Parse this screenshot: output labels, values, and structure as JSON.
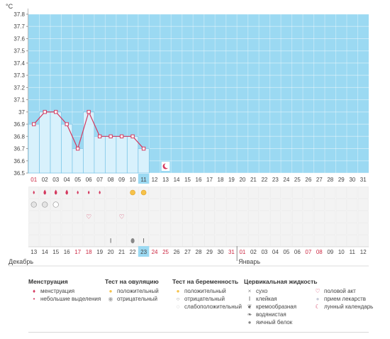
{
  "chart_data": {
    "type": "line",
    "ylabel": "°C",
    "ylim": [
      36.5,
      37.8
    ],
    "y_ticks": [
      36.5,
      36.6,
      36.7,
      36.8,
      36.9,
      37,
      37.1,
      37.2,
      37.3,
      37.4,
      37.5,
      37.6,
      37.7,
      37.8
    ],
    "days": [
      "01",
      "02",
      "03",
      "04",
      "05",
      "06",
      "07",
      "08",
      "09",
      "10",
      "11",
      "12",
      "13",
      "14",
      "15",
      "16",
      "17",
      "18",
      "19",
      "20",
      "21",
      "22",
      "23",
      "24",
      "25",
      "26",
      "27",
      "28",
      "29",
      "30",
      "31"
    ],
    "weekend_days": [
      "01"
    ],
    "current_day": "11",
    "series": [
      {
        "values": [
          36.9,
          37.0,
          37.0,
          36.9,
          36.7,
          37.0,
          36.8,
          36.8,
          36.8,
          36.8,
          36.7
        ]
      }
    ]
  },
  "dates_row": {
    "dates": [
      "13",
      "14",
      "15",
      "16",
      "17",
      "18",
      "19",
      "20",
      "21",
      "22",
      "23",
      "24",
      "25",
      "26",
      "27",
      "28",
      "29",
      "30",
      "31",
      "01",
      "02",
      "03",
      "04",
      "05",
      "06",
      "07",
      "08",
      "09",
      "10",
      "11",
      "12"
    ],
    "red": [
      "17",
      "18",
      "24",
      "25",
      "31",
      "01",
      "07",
      "08"
    ],
    "today": "23",
    "month_left": "Декабрь",
    "month_right": "Январь",
    "month_break_index": 19
  },
  "markers": {
    "menstruation_heavy": [
      1,
      2,
      3
    ],
    "menstruation_light": [
      0,
      4,
      5,
      6
    ],
    "ovulation_positive": [
      9,
      10
    ],
    "pregnancy_negative": [
      0,
      1
    ],
    "pregnancy_weak": [
      2
    ],
    "sex": [
      5,
      8
    ],
    "mucus_sticky": [
      7,
      10
    ],
    "mucus_egg_white": [
      9
    ],
    "moon": 12
  },
  "legend": [
    {
      "title": "Менструация",
      "items": [
        {
          "icon": "menstruation-icon",
          "label": "менструация"
        },
        {
          "icon": "spotting-icon",
          "label": "небольшие выделения"
        }
      ]
    },
    {
      "title": "Тест на овуляцию",
      "items": [
        {
          "icon": "ovulation-positive-icon",
          "label": "положительный"
        },
        {
          "icon": "ovulation-negative-icon",
          "label": "отрицательный"
        }
      ]
    },
    {
      "title": "Тест на беременность",
      "items": [
        {
          "icon": "pregnancy-positive-icon",
          "label": "положительный"
        },
        {
          "icon": "pregnancy-negative-icon",
          "label": "отрицательный"
        },
        {
          "icon": "pregnancy-weak-icon",
          "label": "слабоположительный"
        }
      ]
    },
    {
      "title": "Цервикальная жидкость",
      "items": [
        {
          "icon": "dry-icon",
          "label": "сухо"
        },
        {
          "icon": "sticky-icon",
          "label": "клейкая"
        },
        {
          "icon": "creamy-icon",
          "label": "кремообразная"
        },
        {
          "icon": "watery-icon",
          "label": "водянистая"
        },
        {
          "icon": "egg-white-icon",
          "label": "яичный белок"
        }
      ]
    },
    {
      "title": "",
      "items": [
        {
          "icon": "heart-icon",
          "label": "половой акт"
        },
        {
          "icon": "medicine-icon",
          "label": "прием лекарств"
        },
        {
          "icon": "moon-icon",
          "label": "лунный календарь"
        }
      ]
    }
  ],
  "colors": {
    "plot_bg": "#9bd9f2",
    "column_fill": "#d8f1fc",
    "column_stroke": "#7fc7e8",
    "line": "#d4385e",
    "marker_fill": "#ffffff",
    "red_text": "#cc2a44",
    "today_bg": "#9bd9f2"
  }
}
